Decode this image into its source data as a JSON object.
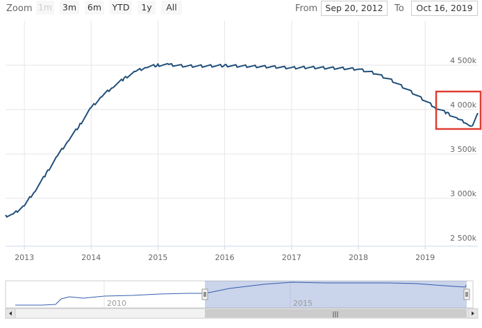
{
  "toolbar": {
    "zoom_label": "Zoom",
    "zoom_buttons": [
      "1m",
      "3m",
      "6m",
      "YTD",
      "1y",
      "All"
    ],
    "from_label": "From",
    "from_value": "Sep 20, 2012",
    "to_label": "To",
    "to_value": "Oct 16, 2019"
  },
  "chart_data": {
    "type": "line",
    "title": "",
    "xlabel": "",
    "ylabel": "",
    "x_range": [
      "2012-09-20",
      "2019-10-16"
    ],
    "ylim": [
      2500,
      4700
    ],
    "x_tick_labels": [
      "2013",
      "2014",
      "2015",
      "2016",
      "2017",
      "2018",
      "2019"
    ],
    "y_tick_labels": [
      "2 500k",
      "3 000k",
      "3 500k",
      "4 000k",
      "4 500k"
    ],
    "grid": true,
    "legend": "none",
    "line_color": "#1f4e79",
    "series": [
      {
        "x": [
          "2012-09-20",
          "2012-11-01",
          "2013-01-01",
          "2013-03-01",
          "2013-05-01",
          "2013-07-01",
          "2013-09-01",
          "2013-11-01",
          "2014-01-01",
          "2014-03-01",
          "2014-05-01",
          "2014-07-01",
          "2014-09-01",
          "2014-11-01",
          "2015-01-01",
          "2015-03-01",
          "2015-06-01",
          "2015-09-01",
          "2016-01-01",
          "2016-04-01",
          "2016-07-01",
          "2016-10-01",
          "2017-01-01",
          "2017-04-01",
          "2017-07-01",
          "2017-10-01",
          "2018-01-01",
          "2018-04-01",
          "2018-07-01",
          "2018-10-01",
          "2019-01-01",
          "2019-03-01",
          "2019-05-01",
          "2019-07-01",
          "2019-08-15",
          "2019-09-10",
          "2019-10-16"
        ],
        "values": [
          2800,
          2820,
          2920,
          3090,
          3280,
          3480,
          3660,
          3830,
          4020,
          4150,
          4260,
          4350,
          4430,
          4480,
          4500,
          4505,
          4490,
          4490,
          4495,
          4490,
          4485,
          4480,
          4470,
          4475,
          4470,
          4465,
          4455,
          4410,
          4330,
          4220,
          4100,
          4020,
          3960,
          3890,
          3850,
          3800,
          3960
        ]
      }
    ]
  },
  "navigator": {
    "x_labels": [
      "2010",
      "2015"
    ],
    "scroll_grip": "|||"
  },
  "annotation": {
    "color": "#e03c31"
  }
}
